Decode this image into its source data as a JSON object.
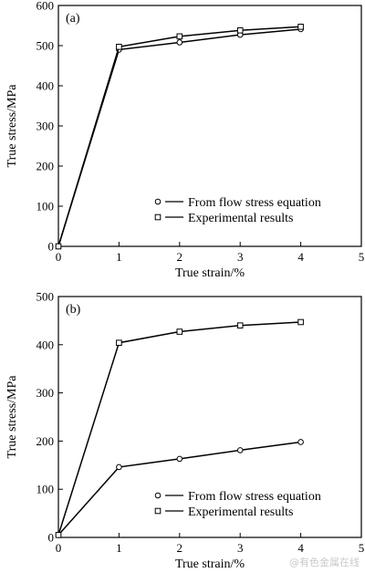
{
  "chart_data": [
    {
      "type": "line",
      "panel_label": "(a)",
      "xlabel": "True strain/%",
      "ylabel": "True stress/MPa",
      "xlim": [
        0,
        5
      ],
      "ylim": [
        0,
        600
      ],
      "xticks": [
        0,
        1,
        2,
        3,
        4,
        5
      ],
      "yticks": [
        0,
        100,
        200,
        300,
        400,
        500,
        600
      ],
      "grid": false,
      "legend_position": "lower-right",
      "series": [
        {
          "name": "From flow stress equation",
          "marker": "circle",
          "x": [
            0,
            1,
            2,
            3,
            4
          ],
          "y": [
            0,
            490,
            508,
            527,
            541
          ]
        },
        {
          "name": "Experimental results",
          "marker": "square",
          "x": [
            0,
            1,
            2,
            3,
            4
          ],
          "y": [
            0,
            497,
            523,
            538,
            547
          ]
        }
      ]
    },
    {
      "type": "line",
      "panel_label": "(b)",
      "xlabel": "True strain/%",
      "ylabel": "True stress/MPa",
      "xlim": [
        0,
        5
      ],
      "ylim": [
        0,
        500
      ],
      "xticks": [
        0,
        1,
        2,
        3,
        4,
        5
      ],
      "yticks": [
        0,
        100,
        200,
        300,
        400,
        500
      ],
      "grid": false,
      "legend_position": "lower-right",
      "series": [
        {
          "name": "From flow stress equation",
          "marker": "circle",
          "x": [
            0,
            1,
            2,
            3,
            4
          ],
          "y": [
            5,
            146,
            163,
            181,
            198
          ]
        },
        {
          "name": "Experimental results",
          "marker": "square",
          "x": [
            0,
            1,
            2,
            3,
            4
          ],
          "y": [
            5,
            404,
            427,
            440,
            447
          ]
        }
      ]
    }
  ],
  "watermark": "@有色金属在线"
}
